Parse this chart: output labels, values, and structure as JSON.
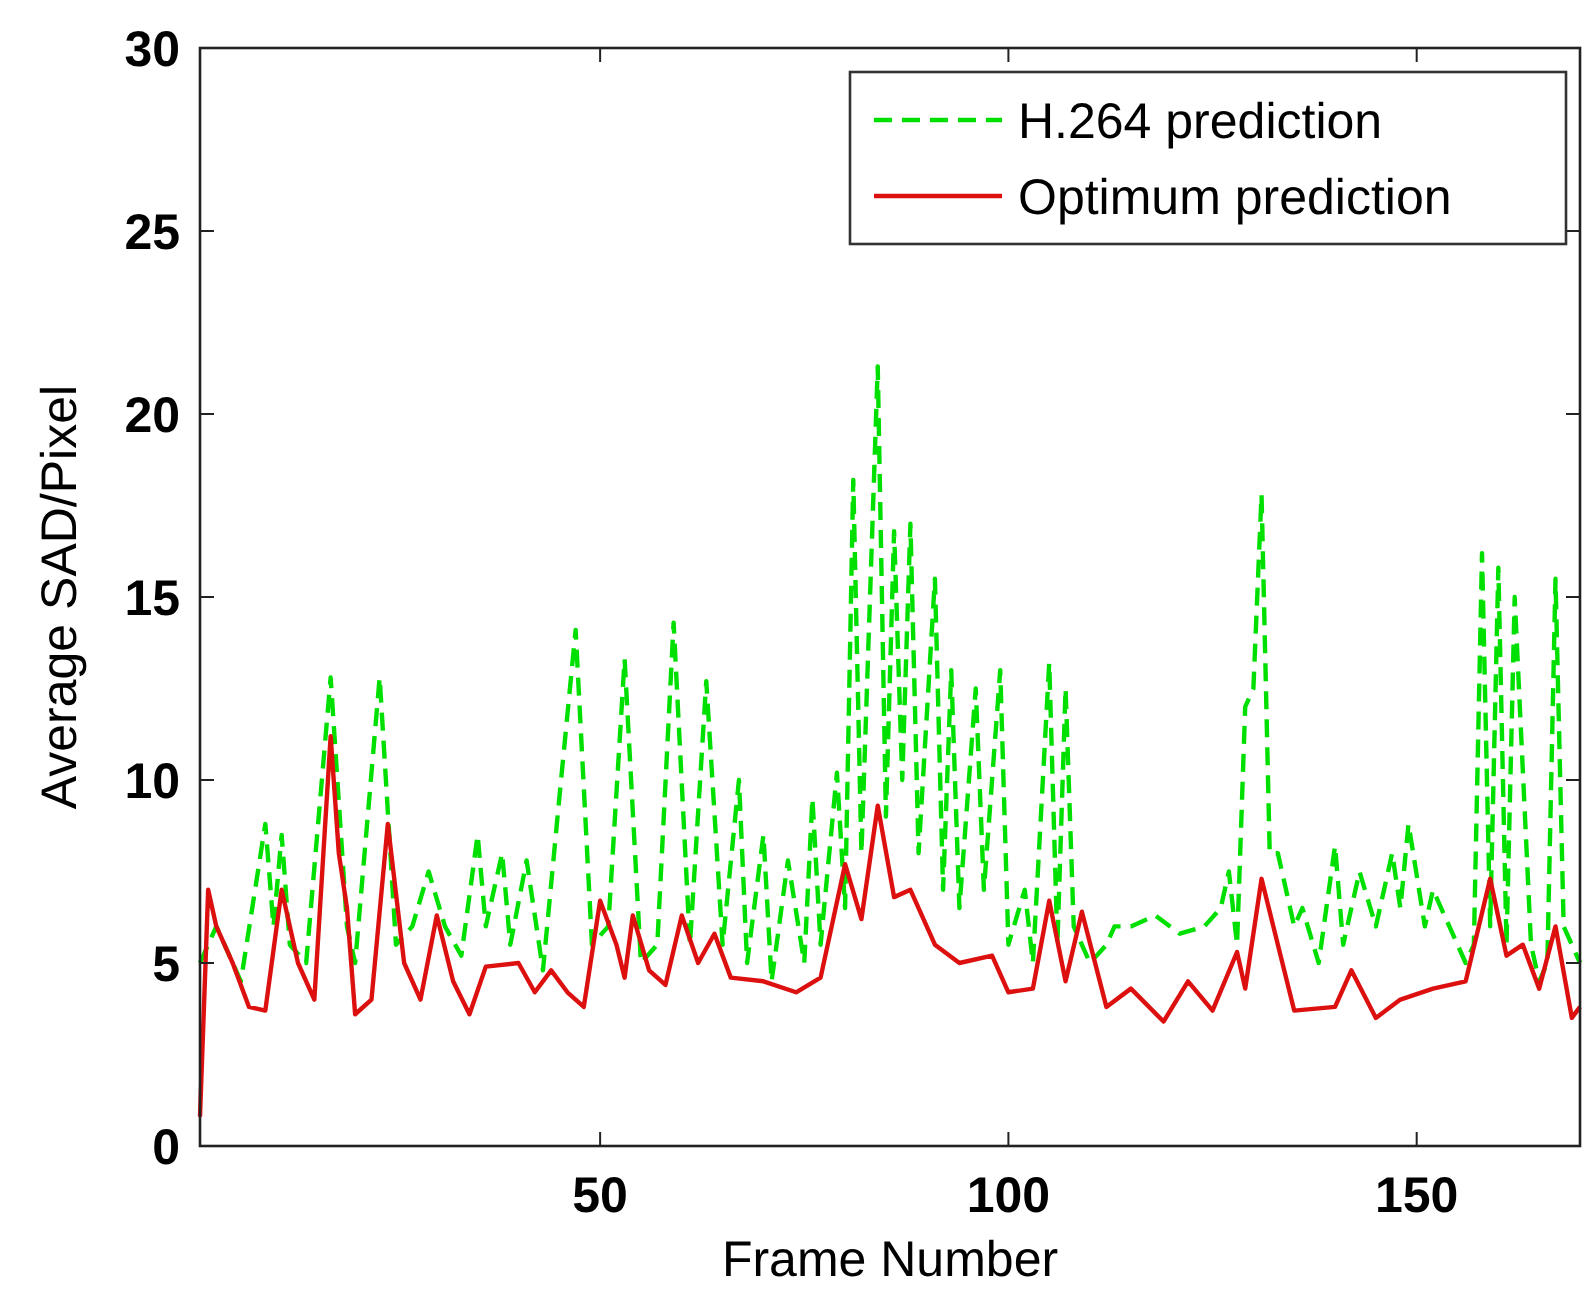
{
  "chart_data": {
    "type": "line",
    "xlabel": "Frame Number",
    "ylabel": "Average SAD/Pixel",
    "xlim": [
      1,
      170
    ],
    "ylim": [
      0,
      30
    ],
    "xticks": [
      50,
      100,
      150
    ],
    "yticks": [
      0,
      5,
      10,
      15,
      20,
      25,
      30
    ],
    "grid": false,
    "legend": "top right",
    "series": [
      {
        "name": "H.264 prediction",
        "color": "#00e000",
        "line_style": "dashed",
        "x": [
          1,
          3,
          6,
          9,
          10,
          11,
          12,
          14,
          17,
          19,
          20,
          23,
          25,
          27,
          29,
          31,
          33,
          35,
          36,
          38,
          39,
          41,
          43,
          45,
          47,
          49,
          51,
          53,
          55,
          57,
          59,
          61,
          63,
          65,
          67,
          68,
          70,
          71,
          73,
          75,
          76,
          77,
          79,
          80,
          81,
          82,
          84,
          85,
          86,
          87,
          88,
          89,
          91,
          92,
          93,
          94,
          96,
          97,
          99,
          100,
          102,
          103,
          105,
          106,
          107,
          108,
          110,
          112,
          113,
          115,
          118,
          121,
          124,
          126,
          127,
          128,
          129,
          130,
          131,
          132,
          133,
          135,
          136,
          138,
          140,
          141,
          143,
          145,
          147,
          148,
          149,
          151,
          152,
          154,
          156,
          157,
          158,
          159,
          160,
          161,
          162,
          164,
          165,
          166,
          167,
          168,
          170
        ],
        "values": [
          5,
          6,
          4.5,
          8.8,
          6,
          8.5,
          5.5,
          5,
          12.8,
          6,
          5,
          12.8,
          5.5,
          6,
          7.5,
          6,
          5.2,
          8.5,
          6,
          8,
          5.5,
          7.8,
          4.8,
          9.5,
          14.1,
          5.5,
          6,
          13.3,
          5,
          5.5,
          14.3,
          5.5,
          12.7,
          5.5,
          10,
          5,
          8.5,
          4.5,
          7.8,
          5,
          9.5,
          5.5,
          10.2,
          6.5,
          18.2,
          8,
          21.3,
          9,
          16.8,
          10,
          17,
          8,
          15.5,
          7,
          13,
          6.5,
          12.5,
          7,
          13,
          5.5,
          7,
          5,
          13.2,
          5.5,
          12.5,
          6,
          5,
          5.5,
          6,
          6,
          6.3,
          5.8,
          6,
          6.5,
          7.5,
          5.5,
          12,
          12.5,
          17.8,
          8,
          8,
          6,
          6.5,
          5,
          8.2,
          5.5,
          7.5,
          6,
          8,
          6.5,
          8.8,
          6,
          7,
          6,
          5,
          5.5,
          16.2,
          6,
          15.8,
          5.5,
          15,
          5.5,
          4.5,
          5,
          15.5,
          6,
          5
        ]
      },
      {
        "name": "Optimum prediction",
        "color": "#dd1010",
        "line_style": "solid",
        "x": [
          1,
          2,
          3,
          5,
          7,
          9,
          11,
          13,
          15,
          17,
          18,
          19,
          20,
          22,
          24,
          26,
          28,
          30,
          32,
          34,
          36,
          40,
          42,
          44,
          46,
          48,
          50,
          52,
          53,
          54,
          56,
          58,
          60,
          62,
          64,
          66,
          70,
          74,
          77,
          80,
          82,
          84,
          86,
          88,
          91,
          94,
          98,
          100,
          103,
          105,
          107,
          109,
          112,
          115,
          119,
          122,
          125,
          128,
          129,
          131,
          133,
          135,
          140,
          142,
          145,
          148,
          152,
          156,
          159,
          161,
          163,
          165,
          167,
          169,
          170
        ],
        "values": [
          0.8,
          7,
          6,
          5,
          3.8,
          3.7,
          7,
          5,
          4,
          11.2,
          8,
          6.5,
          3.6,
          4,
          8.8,
          5,
          4,
          6.3,
          4.5,
          3.6,
          4.9,
          5,
          4.2,
          4.8,
          4.2,
          3.8,
          6.7,
          5.5,
          4.6,
          6.3,
          4.8,
          4.4,
          6.3,
          5,
          5.8,
          4.6,
          4.5,
          4.2,
          4.6,
          7.7,
          6.2,
          9.3,
          6.8,
          7,
          5.5,
          5,
          5.2,
          4.2,
          4.3,
          6.7,
          4.5,
          6.4,
          3.8,
          4.3,
          3.4,
          4.5,
          3.7,
          5.3,
          4.3,
          7.3,
          5.5,
          3.7,
          3.8,
          4.8,
          3.5,
          4,
          4.3,
          4.5,
          7.3,
          5.2,
          5.5,
          4.3,
          6,
          3.5,
          3.8
        ]
      }
    ]
  }
}
